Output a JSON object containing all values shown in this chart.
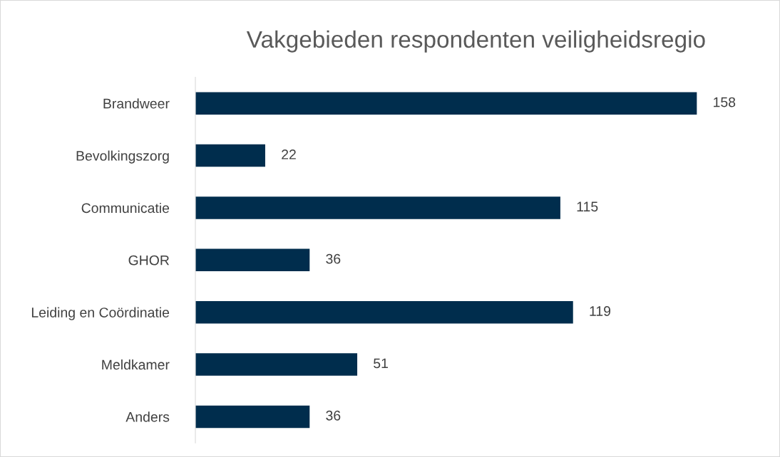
{
  "chart_data": {
    "type": "bar",
    "orientation": "horizontal",
    "title": "Vakgebieden respondenten veiligheidsregio",
    "categories": [
      "Brandweer",
      "Bevolkingszorg",
      "Communicatie",
      "GHOR",
      "Leiding en Coördinatie",
      "Meldkamer",
      "Anders"
    ],
    "values": [
      158,
      22,
      115,
      36,
      119,
      51,
      36
    ],
    "color": "#002d4d",
    "data_labels": true,
    "grid": false,
    "legend": false
  }
}
